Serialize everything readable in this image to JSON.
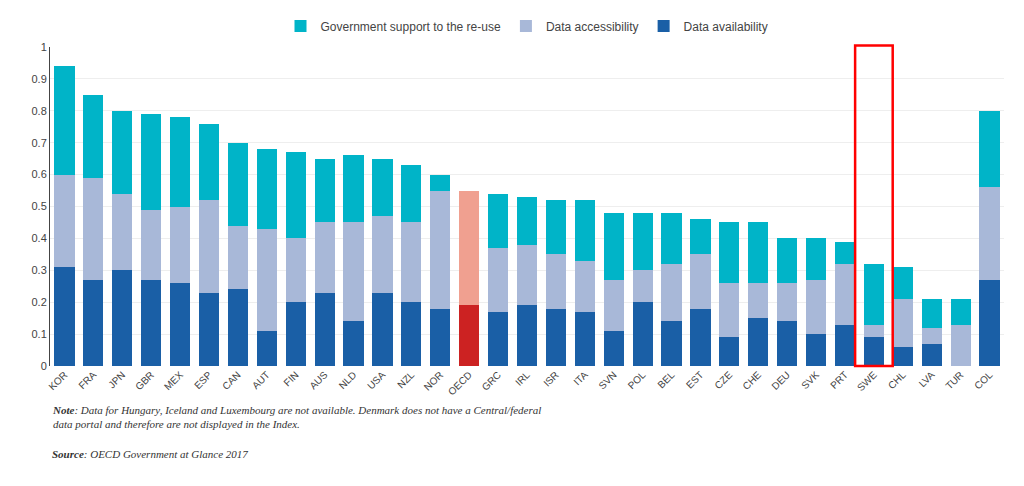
{
  "chart_data": {
    "type": "bar",
    "stacked": true,
    "categories": [
      "KOR",
      "FRA",
      "JPN",
      "GBR",
      "MEX",
      "ESP",
      "CAN",
      "AUT",
      "FIN",
      "AUS",
      "NLD",
      "USA",
      "NZL",
      "NOR",
      "OECD",
      "GRC",
      "IRL",
      "ISR",
      "ITA",
      "SVN",
      "POL",
      "BEL",
      "EST",
      "CZE",
      "CHE",
      "DEU",
      "SVK",
      "PRT",
      "SWE",
      "CHL",
      "LVA",
      "TUR",
      "COL"
    ],
    "series": [
      {
        "name": "Data availability",
        "color": "#1a5fa6",
        "colors": [
          "#1a5fa6",
          "#1a5fa6",
          "#1a5fa6",
          "#1a5fa6",
          "#1a5fa6",
          "#1a5fa6",
          "#1a5fa6",
          "#1a5fa6",
          "#1a5fa6",
          "#1a5fa6",
          "#1a5fa6",
          "#1a5fa6",
          "#1a5fa6",
          "#1a5fa6",
          "#cc2222",
          "#1a5fa6",
          "#1a5fa6",
          "#1a5fa6",
          "#1a5fa6",
          "#1a5fa6",
          "#1a5fa6",
          "#1a5fa6",
          "#1a5fa6",
          "#1a5fa6",
          "#1a5fa6",
          "#1a5fa6",
          "#1a5fa6",
          "#1a5fa6",
          "#1a5fa6",
          "#1a5fa6",
          "#1a5fa6",
          "#1a5fa6",
          "#1a5fa6"
        ],
        "values": [
          0.31,
          0.27,
          0.3,
          0.27,
          0.26,
          0.23,
          0.24,
          0.11,
          0.2,
          0.23,
          0.14,
          0.23,
          0.2,
          0.18,
          0.19,
          0.17,
          0.19,
          0.18,
          0.17,
          0.11,
          0.2,
          0.14,
          0.18,
          0.09,
          0.15,
          0.14,
          0.1,
          0.13,
          0.09,
          0.06,
          0.07,
          0.0,
          0.27
        ]
      },
      {
        "name": "Data accessibility",
        "color": "#a8b8d8",
        "colors": [
          "#a8b8d8",
          "#a8b8d8",
          "#a8b8d8",
          "#a8b8d8",
          "#a8b8d8",
          "#a8b8d8",
          "#a8b8d8",
          "#a8b8d8",
          "#a8b8d8",
          "#a8b8d8",
          "#a8b8d8",
          "#a8b8d8",
          "#a8b8d8",
          "#a8b8d8",
          "#f0a090",
          "#a8b8d8",
          "#a8b8d8",
          "#a8b8d8",
          "#a8b8d8",
          "#a8b8d8",
          "#a8b8d8",
          "#a8b8d8",
          "#a8b8d8",
          "#a8b8d8",
          "#a8b8d8",
          "#a8b8d8",
          "#a8b8d8",
          "#a8b8d8",
          "#a8b8d8",
          "#a8b8d8",
          "#a8b8d8",
          "#a8b8d8",
          "#a8b8d8"
        ],
        "values": [
          0.29,
          0.32,
          0.24,
          0.22,
          0.24,
          0.29,
          0.2,
          0.32,
          0.2,
          0.22,
          0.31,
          0.24,
          0.25,
          0.37,
          0.36,
          0.2,
          0.19,
          0.17,
          0.16,
          0.16,
          0.1,
          0.18,
          0.17,
          0.17,
          0.11,
          0.12,
          0.17,
          0.19,
          0.04,
          0.15,
          0.05,
          0.13,
          0.29
        ]
      },
      {
        "name": "Government support to the re-use",
        "color": "#00b4c8",
        "colors": [
          "#00b4c8",
          "#00b4c8",
          "#00b4c8",
          "#00b4c8",
          "#00b4c8",
          "#00b4c8",
          "#00b4c8",
          "#00b4c8",
          "#00b4c8",
          "#00b4c8",
          "#00b4c8",
          "#00b4c8",
          "#00b4c8",
          "#00b4c8",
          "#cc2222",
          "#00b4c8",
          "#00b4c8",
          "#00b4c8",
          "#00b4c8",
          "#00b4c8",
          "#00b4c8",
          "#00b4c8",
          "#00b4c8",
          "#00b4c8",
          "#00b4c8",
          "#00b4c8",
          "#00b4c8",
          "#00b4c8",
          "#00b4c8",
          "#00b4c8",
          "#00b4c8",
          "#00b4c8",
          "#00b4c8"
        ],
        "values": [
          0.34,
          0.26,
          0.26,
          0.3,
          0.28,
          0.24,
          0.26,
          0.25,
          0.27,
          0.2,
          0.21,
          0.18,
          0.18,
          0.05,
          0.0,
          0.17,
          0.15,
          0.17,
          0.19,
          0.21,
          0.18,
          0.16,
          0.11,
          0.19,
          0.19,
          0.14,
          0.13,
          0.07,
          0.19,
          0.1,
          0.09,
          0.08,
          0.24
        ]
      }
    ],
    "ylim": [
      0,
      1.0
    ],
    "yticks": [
      0,
      0.1,
      0.2,
      0.3,
      0.4,
      0.5,
      0.6,
      0.7,
      0.8,
      0.9,
      1
    ],
    "grid": true,
    "annotations": [
      "Note: Data for Hungary, Iceland and Luxembourg are not available. Denmark does not have a Central/federal\ndata portal and therefore are not displayed in the Index.",
      "Source: OECD Government at Glance 2017"
    ]
  }
}
